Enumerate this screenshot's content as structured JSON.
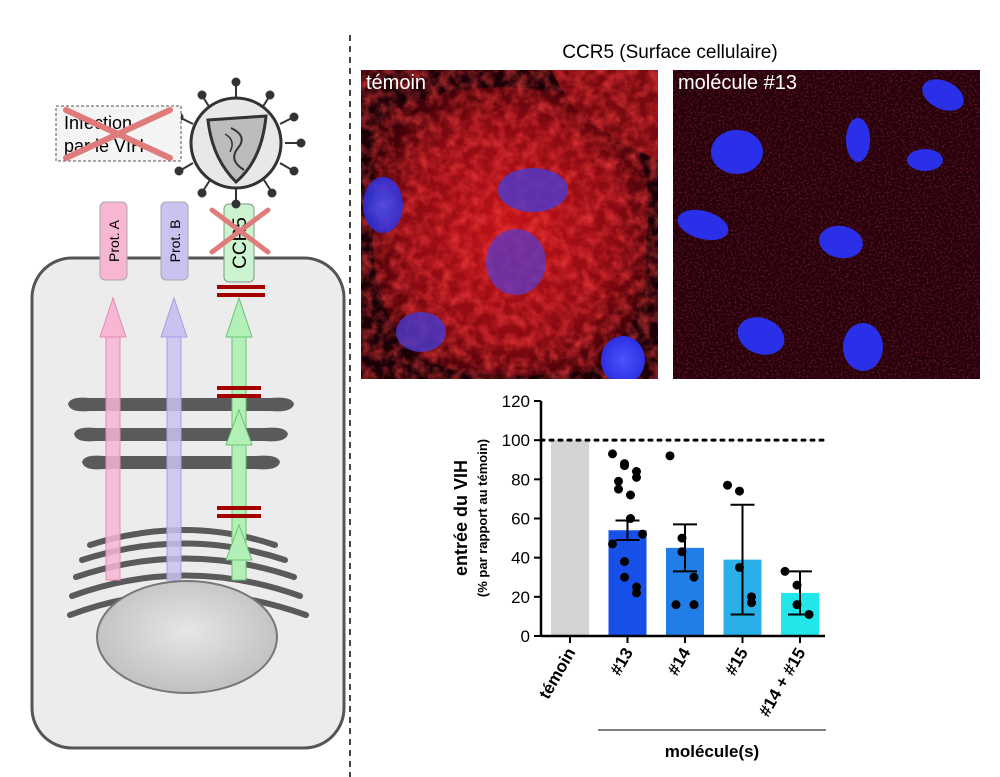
{
  "cell_diagram": {
    "infection_label_line1": "Infection",
    "infection_label_line2": "par le VIH",
    "protein_a": "Prot. A",
    "protein_b": "Prot. B",
    "ccr5": "CCR5",
    "colors": {
      "prot_a": "#f7b6d2",
      "prot_b": "#c9c3f0",
      "ccr5": "#b2f0b8",
      "block": "#a30000",
      "cross": "#e07b7b"
    }
  },
  "microscopy": {
    "title": "CCR5 (Surface cellulaire)",
    "panels": [
      {
        "label": "témoin"
      },
      {
        "label": "molécule #13"
      }
    ]
  },
  "chart_data": {
    "type": "bar",
    "categories": [
      "témoin",
      "#13",
      "#14",
      "#15",
      "#14 + #15"
    ],
    "values": [
      100,
      54,
      45,
      39,
      22
    ],
    "error_bars": [
      {
        "low": null,
        "high": null
      },
      {
        "low": 49,
        "high": 59
      },
      {
        "low": 33,
        "high": 57
      },
      {
        "low": 11,
        "high": 67
      },
      {
        "low": 11,
        "high": 33
      }
    ],
    "points": [
      [],
      [
        93,
        88,
        87,
        84,
        81,
        79,
        75,
        72,
        60,
        52,
        47,
        38,
        30,
        25,
        22
      ],
      [
        92,
        50,
        43,
        30,
        16,
        16
      ],
      [
        77,
        74,
        35,
        20,
        17
      ],
      [
        33,
        26,
        16,
        11
      ]
    ],
    "colors": [
      "#d3d3d3",
      "#1750e8",
      "#1f7ee8",
      "#29b0ea",
      "#22e6ea"
    ],
    "ylabel": "entrée du VIH",
    "ylabel_sub": "(% par rapport au témoin)",
    "xlabel": "molécule(s)",
    "ylim": [
      0,
      120
    ],
    "yticks": [
      0,
      20,
      40,
      60,
      80,
      100,
      120
    ],
    "reference_line": 100
  }
}
